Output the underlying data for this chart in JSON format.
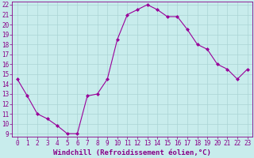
{
  "x": [
    0,
    1,
    2,
    3,
    4,
    5,
    6,
    7,
    8,
    9,
    10,
    11,
    12,
    13,
    14,
    15,
    16,
    17,
    18,
    19,
    20,
    21,
    22,
    23
  ],
  "y": [
    14.5,
    12.8,
    11.0,
    10.5,
    9.8,
    9.0,
    9.0,
    12.8,
    13.0,
    14.5,
    18.5,
    21.0,
    21.5,
    22.0,
    21.5,
    20.8,
    20.8,
    19.5,
    18.0,
    17.5,
    16.0,
    15.5,
    14.5,
    15.5
  ],
  "line_color": "#990099",
  "marker": "D",
  "marker_size": 2,
  "bg_color": "#c8ecec",
  "grid_color": "#aad4d4",
  "xlabel": "Windchill (Refroidissement éolien,°C)",
  "ylim": [
    9,
    22
  ],
  "xlim": [
    -0.5,
    23.5
  ],
  "yticks": [
    9,
    10,
    11,
    12,
    13,
    14,
    15,
    16,
    17,
    18,
    19,
    20,
    21,
    22
  ],
  "xticks": [
    0,
    1,
    2,
    3,
    4,
    5,
    6,
    7,
    8,
    9,
    10,
    11,
    12,
    13,
    14,
    15,
    16,
    17,
    18,
    19,
    20,
    21,
    22,
    23
  ],
  "xlabel_color": "#880088",
  "tick_color": "#880088",
  "axis_color": "#880088",
  "label_fontsize": 6.5,
  "tick_fontsize": 5.5,
  "linewidth": 0.8
}
